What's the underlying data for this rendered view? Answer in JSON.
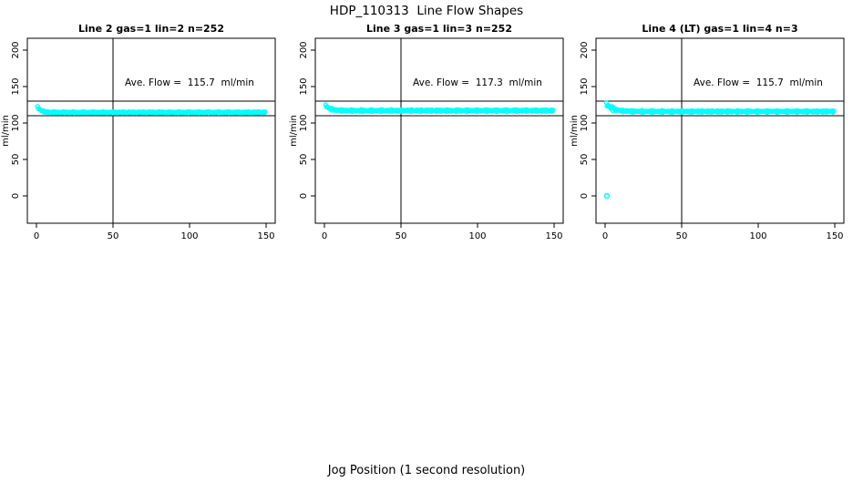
{
  "page": {
    "title": "HDP_110313  Line Flow Shapes",
    "xlabel": "Jog Position (1 second resolution)",
    "background": "#ffffff"
  },
  "chart_data": [
    {
      "type": "scatter",
      "title": "Line 2 gas=1 lin=2 n=252",
      "annotation": "Ave. Flow =  115.7  ml/min",
      "ave_flow": 115.7,
      "n": 252,
      "ylabel": "ml/min",
      "x_ticks": [
        0,
        50,
        100,
        150
      ],
      "y_ticks": [
        0,
        50,
        100,
        150,
        200
      ],
      "xlim": [
        0,
        150
      ],
      "ylim": [
        -38,
        216
      ],
      "grid": false,
      "marker_color": "#00ffff",
      "marker_style": "open-circle",
      "ref_lines_y": [
        130,
        110
      ],
      "ref_line_x": 50,
      "band": {
        "n": 250,
        "x_start": 0.8,
        "x_end": 149.5,
        "start_y": 122,
        "steady_y": 114.6,
        "tau": 2.2,
        "jitter": 1.1
      },
      "outliers": []
    },
    {
      "type": "scatter",
      "title": "Line 3 gas=1 lin=3 n=252",
      "annotation": "Ave. Flow =  117.3  ml/min",
      "ave_flow": 117.3,
      "n": 252,
      "ylabel": "ml/min",
      "x_ticks": [
        0,
        50,
        100,
        150
      ],
      "y_ticks": [
        0,
        50,
        100,
        150,
        200
      ],
      "xlim": [
        0,
        150
      ],
      "ylim": [
        -38,
        216
      ],
      "grid": false,
      "marker_color": "#00ffff",
      "marker_style": "open-circle",
      "ref_lines_y": [
        130,
        110
      ],
      "ref_line_x": 50,
      "band": {
        "n": 250,
        "x_start": 0.8,
        "x_end": 149.5,
        "start_y": 124,
        "steady_y": 117.0,
        "tau": 3.0,
        "jitter": 1.5
      },
      "outliers": []
    },
    {
      "type": "scatter",
      "title": "Line 4 (LT) gas=1 lin=4 n=3",
      "annotation": "Ave. Flow =  115.7  ml/min",
      "ave_flow": 115.7,
      "n": 3,
      "ylabel": "ml/min",
      "x_ticks": [
        0,
        50,
        100,
        150
      ],
      "y_ticks": [
        0,
        50,
        100,
        150,
        200
      ],
      "xlim": [
        0,
        150
      ],
      "ylim": [
        -38,
        216
      ],
      "grid": false,
      "marker_color": "#00ffff",
      "marker_style": "open-circle",
      "ref_lines_y": [
        130,
        110
      ],
      "ref_line_x": 50,
      "band": {
        "n": 250,
        "x_start": 0.8,
        "x_end": 149.5,
        "start_y": 126,
        "steady_y": 115.8,
        "tau": 4.5,
        "jitter": 1.4,
        "left_boost": {
          "x_max": 7,
          "factor": 2.2
        }
      },
      "outliers": [
        {
          "x": 1.2,
          "y": 0
        }
      ]
    }
  ]
}
